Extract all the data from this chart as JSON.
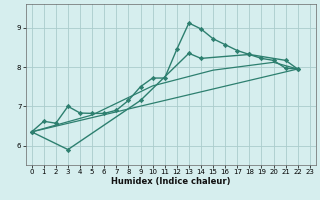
{
  "xlabel": "Humidex (Indice chaleur)",
  "background_color": "#d6eeee",
  "grid_color": "#aacccc",
  "line_color": "#2d7f6f",
  "marker_color": "#2d7f6f",
  "xlim": [
    -0.5,
    23.5
  ],
  "ylim": [
    5.5,
    9.6
  ],
  "yticks": [
    6,
    7,
    8,
    9
  ],
  "xticks": [
    0,
    1,
    2,
    3,
    4,
    5,
    6,
    7,
    8,
    9,
    10,
    11,
    12,
    13,
    14,
    15,
    16,
    17,
    18,
    19,
    20,
    21,
    22,
    23
  ],
  "lines": [
    {
      "x": [
        0,
        1,
        2,
        3,
        4,
        5,
        6,
        7,
        8,
        9,
        10,
        11,
        12,
        13,
        14,
        15,
        16,
        17,
        18,
        19,
        20,
        21,
        22
      ],
      "y": [
        6.35,
        6.62,
        6.57,
        7.0,
        6.83,
        6.82,
        6.82,
        6.9,
        7.15,
        7.5,
        7.72,
        7.72,
        8.45,
        9.12,
        8.97,
        8.72,
        8.57,
        8.42,
        8.32,
        8.22,
        8.17,
        7.97,
        7.95
      ],
      "lw": 1.0,
      "marker": true
    },
    {
      "x": [
        0,
        3,
        9,
        13,
        14,
        18,
        21,
        22
      ],
      "y": [
        6.35,
        5.9,
        7.15,
        8.35,
        8.22,
        8.32,
        8.17,
        7.95
      ],
      "lw": 1.0,
      "marker": true
    },
    {
      "x": [
        0,
        5,
        10,
        15,
        20,
        22
      ],
      "y": [
        6.35,
        6.78,
        7.52,
        7.92,
        8.12,
        7.95
      ],
      "lw": 0.9,
      "marker": false
    },
    {
      "x": [
        0,
        22
      ],
      "y": [
        6.35,
        7.95
      ],
      "lw": 0.9,
      "marker": false
    }
  ]
}
